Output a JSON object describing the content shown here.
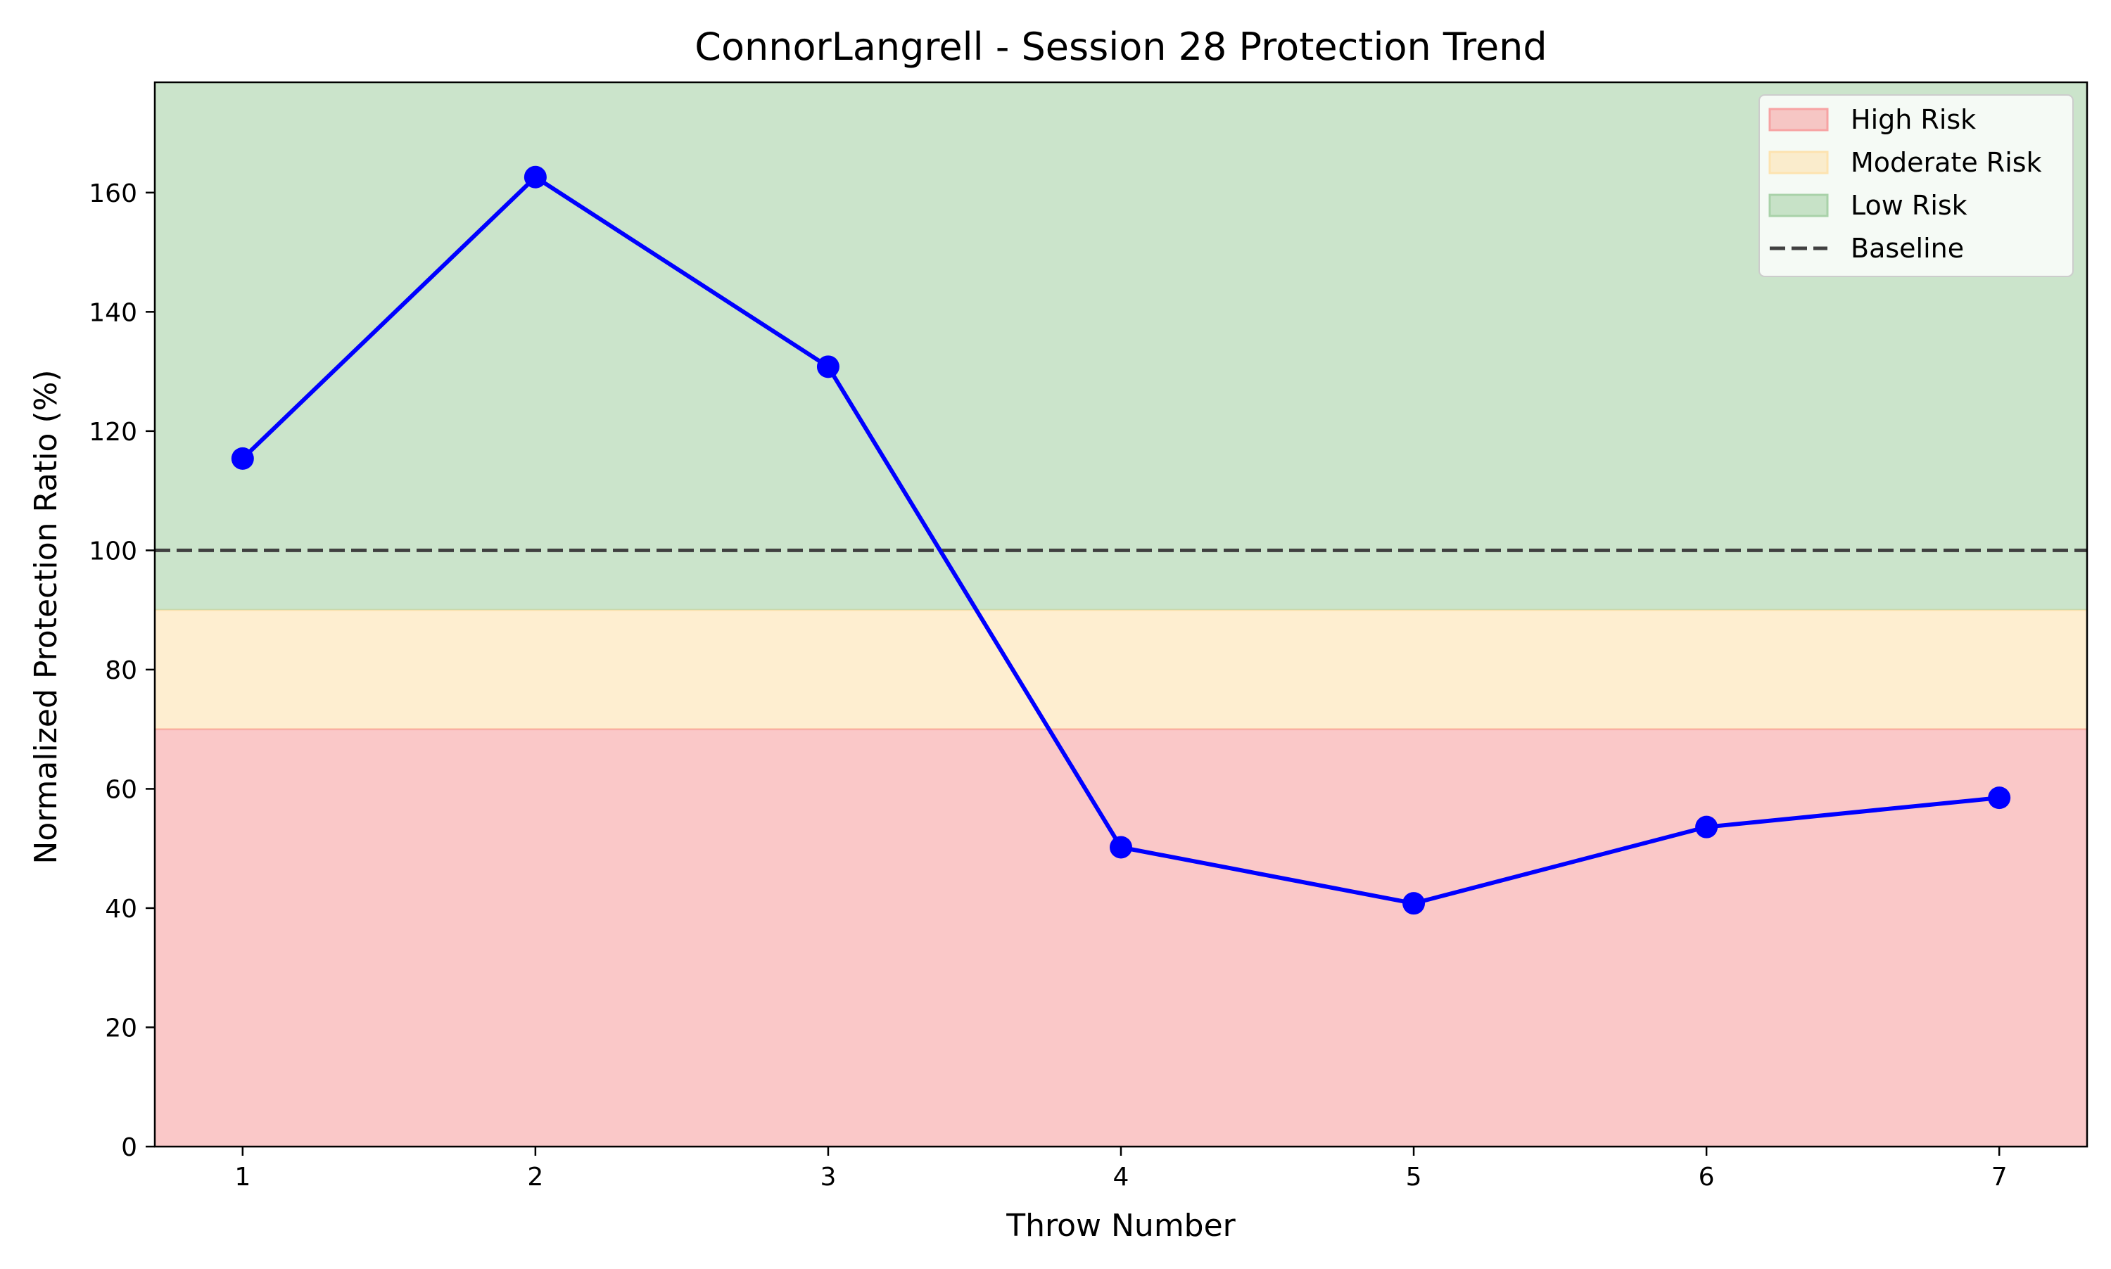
{
  "chart_data": {
    "type": "line",
    "title": "ConnorLangrell - Session 28 Protection Trend",
    "xlabel": "Throw Number",
    "ylabel": "Normalized Protection Ratio (%)",
    "x": [
      1,
      2,
      3,
      4,
      5,
      6,
      7
    ],
    "xlim": [
      0.7,
      7.3
    ],
    "ylim": [
      0,
      178.5
    ],
    "xticks": [
      "1",
      "2",
      "3",
      "4",
      "5",
      "6",
      "7"
    ],
    "yticks": [
      "0",
      "20",
      "40",
      "60",
      "80",
      "100",
      "120",
      "140",
      "160"
    ],
    "series": [
      {
        "values": [
          115.4,
          162.6,
          130.8,
          50.2,
          40.8,
          53.6,
          58.5
        ],
        "color": "#0000ff",
        "marker": "circle"
      }
    ],
    "bands": [
      {
        "name": "High Risk",
        "from": 0,
        "to": 70,
        "color": "#f7a3a3"
      },
      {
        "name": "Moderate Risk",
        "from": 70,
        "to": 90,
        "color": "#fde3b0"
      },
      {
        "name": "Low Risk",
        "from": 90,
        "to": 178.5,
        "color": "#a9d2a9"
      }
    ],
    "baseline": {
      "name": "Baseline",
      "value": 100,
      "color": "#404040",
      "style": "dashed"
    },
    "legend": {
      "placement": "top-right",
      "entries": [
        "High Risk",
        "Moderate Risk",
        "Low Risk",
        "Baseline"
      ]
    },
    "grid": false
  }
}
